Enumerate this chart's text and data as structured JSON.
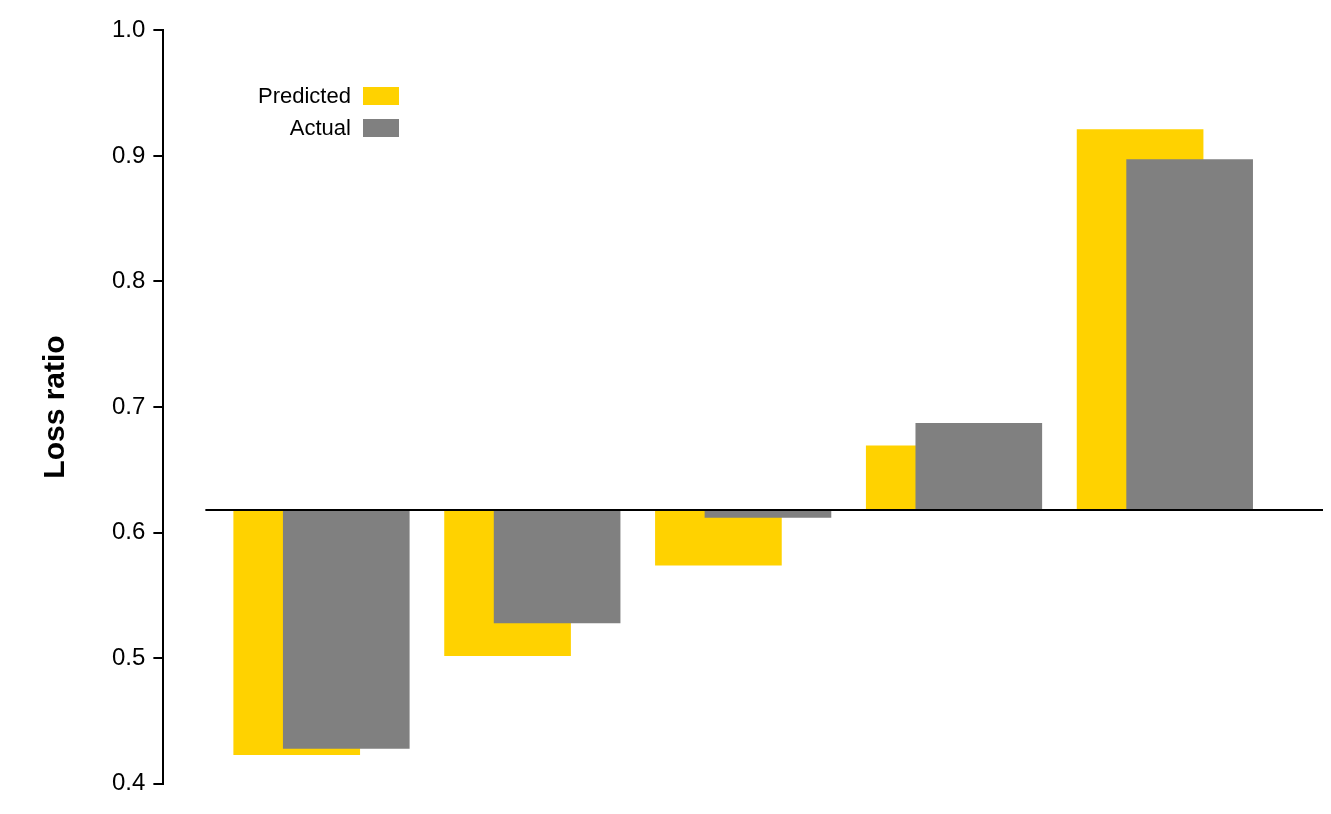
{
  "chart_data": {
    "type": "bar",
    "ylabel": "Loss ratio",
    "categories": [
      null,
      null,
      null,
      null,
      null
    ],
    "series": [
      {
        "name": "Predicted",
        "color": "#ffd200",
        "base": [
          0.618,
          0.618,
          0.618,
          0.618,
          0.618
        ],
        "values": [
          -0.195,
          -0.116,
          -0.044,
          0.051,
          0.303
        ]
      },
      {
        "name": "Actual",
        "color": "#808080",
        "base": [
          0.618,
          0.618,
          0.618,
          0.618,
          0.618
        ],
        "values": [
          -0.19,
          -0.09,
          -0.006,
          0.069,
          0.279
        ]
      }
    ],
    "ylim": [
      0.4,
      1.0
    ],
    "yticks": [
      0.4,
      0.5,
      0.6,
      0.7,
      0.8,
      0.9,
      {
        "value": 1.0,
        "label": "1.0"
      }
    ],
    "ref_lines": [
      {
        "axis": "y",
        "value": 0.618,
        "color": "#000000"
      }
    ],
    "grid": false,
    "legend": "top left",
    "tick_labels": "y"
  }
}
